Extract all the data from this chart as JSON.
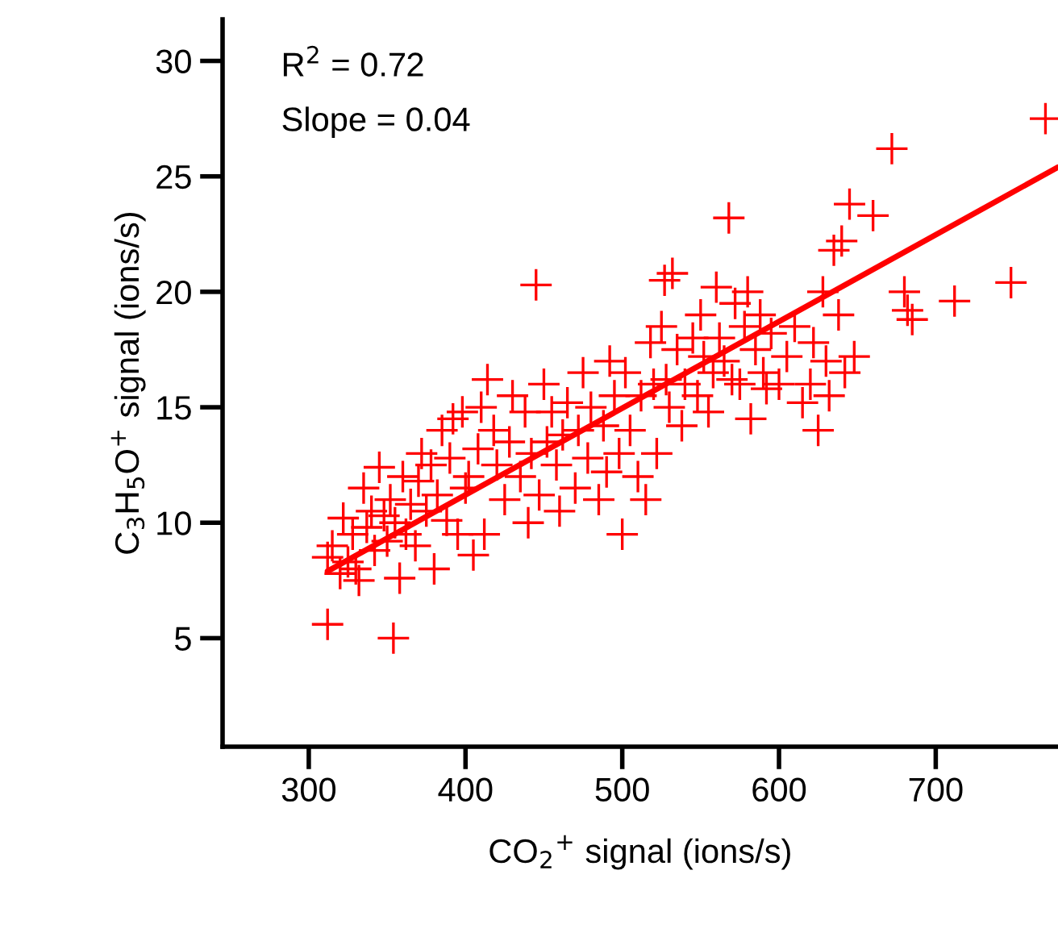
{
  "chart_data": {
    "type": "scatter",
    "xlabel": "CO$_{2}$$^{+}$ signal (ions/s)",
    "ylabel": "C$_{3}$H$_{5}$O$^{+}$ signal (ions/s)",
    "annotations": [
      "R$^{2}$ = 0.72",
      "Slope = 0.04"
    ],
    "xlim": [
      245,
      778
    ],
    "ylim": [
      0.3,
      31.8
    ],
    "xticks": [
      300,
      400,
      500,
      600,
      700
    ],
    "yticks": [
      5,
      10,
      15,
      20,
      25,
      30
    ],
    "grid": false,
    "legend": false,
    "series": [
      {
        "color": "#ff0000",
        "marker": "cross",
        "x": [
          312,
          354,
          312,
          315,
          320,
          322,
          325,
          328,
          330,
          332,
          335,
          337,
          340,
          342,
          345,
          348,
          350,
          352,
          355,
          358,
          360,
          362,
          365,
          368,
          370,
          372,
          375,
          378,
          380,
          382,
          385,
          388,
          390,
          392,
          395,
          398,
          400,
          402,
          405,
          408,
          410,
          412,
          414,
          418,
          420,
          425,
          428,
          430,
          435,
          438,
          440,
          442,
          445,
          447,
          450,
          452,
          455,
          458,
          460,
          462,
          465,
          470,
          472,
          475,
          478,
          480,
          485,
          488,
          490,
          492,
          495,
          498,
          500,
          502,
          505,
          510,
          512,
          515,
          518,
          520,
          522,
          525,
          527,
          528,
          530,
          532,
          535,
          538,
          540,
          545,
          548,
          550,
          552,
          555,
          558,
          560,
          562,
          565,
          568,
          570,
          572,
          575,
          578,
          580,
          582,
          585,
          588,
          590,
          592,
          595,
          600,
          605,
          610,
          615,
          620,
          622,
          625,
          628,
          630,
          632,
          635,
          638,
          640,
          642,
          645,
          648,
          660,
          672,
          680,
          682,
          685,
          712,
          748,
          770
        ],
        "values": [
          5.6,
          5.0,
          8.5,
          9.0,
          7.8,
          10.2,
          8.3,
          9.5,
          8.0,
          7.5,
          11.5,
          9.8,
          10.5,
          8.8,
          12.4,
          10.3,
          9.2,
          11.0,
          10.0,
          7.6,
          12.0,
          9.5,
          10.8,
          9.0,
          11.8,
          13.0,
          10.5,
          12.5,
          8.0,
          11.2,
          14.0,
          10.1,
          12.8,
          14.5,
          9.5,
          14.8,
          11.5,
          12.0,
          8.6,
          13.2,
          15.0,
          9.5,
          16.2,
          14.0,
          12.5,
          11.0,
          13.5,
          15.5,
          12.0,
          14.8,
          10.0,
          13.0,
          20.3,
          11.2,
          16.0,
          13.5,
          14.8,
          12.5,
          10.5,
          13.8,
          15.2,
          11.5,
          14.0,
          16.5,
          12.8,
          15.0,
          11.0,
          14.2,
          12.2,
          17.0,
          15.5,
          13.0,
          9.5,
          16.5,
          14.0,
          12.0,
          15.5,
          11.0,
          17.8,
          16.0,
          13.0,
          18.5,
          20.5,
          16.2,
          15.0,
          20.8,
          17.5,
          14.2,
          16.0,
          18.0,
          15.5,
          19.0,
          17.2,
          14.8,
          16.5,
          20.2,
          18.0,
          17.0,
          23.2,
          16.2,
          19.5,
          16.0,
          18.5,
          20.0,
          14.5,
          17.5,
          19.0,
          16.5,
          15.8,
          18.2,
          16.0,
          17.2,
          18.5,
          15.2,
          16.0,
          17.8,
          14.0,
          20.0,
          17.0,
          15.5,
          21.8,
          19.0,
          22.2,
          16.5,
          23.8,
          17.2,
          23.3,
          26.2,
          20.0,
          19.2,
          18.8,
          19.6,
          20.4,
          27.5
        ]
      },
      {
        "type": "line",
        "color": "#ff0000",
        "x": [
          312,
          778
        ],
        "values": [
          7.9,
          25.4
        ]
      }
    ]
  }
}
